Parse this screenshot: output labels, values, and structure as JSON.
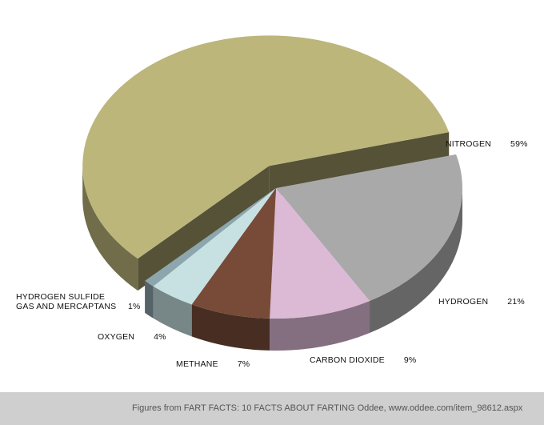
{
  "chart_data": {
    "type": "pie",
    "categories": [
      "HYDROGEN",
      "CARBON DIOXIDE",
      "METHANE",
      "OXYGEN",
      "HYDROGEN SULFIDE GAS AND MERCAPTANS",
      "NITROGEN"
    ],
    "values": [
      21,
      9,
      7,
      4,
      1,
      59
    ],
    "value_labels": [
      "21%",
      "9%",
      "7%",
      "4%",
      "1%",
      "59%"
    ],
    "colors": [
      "#a9a9a9",
      "#dcb9d5",
      "#774b38",
      "#c7e1e3",
      "#8da5ad",
      "#bcb67b"
    ],
    "exploded": [
      false,
      false,
      false,
      false,
      false,
      true
    ],
    "footer": "Figures from FART FACTS: 10 FACTS ABOUT FARTING Oddee, www.oddee.com/item_98612.aspx"
  }
}
